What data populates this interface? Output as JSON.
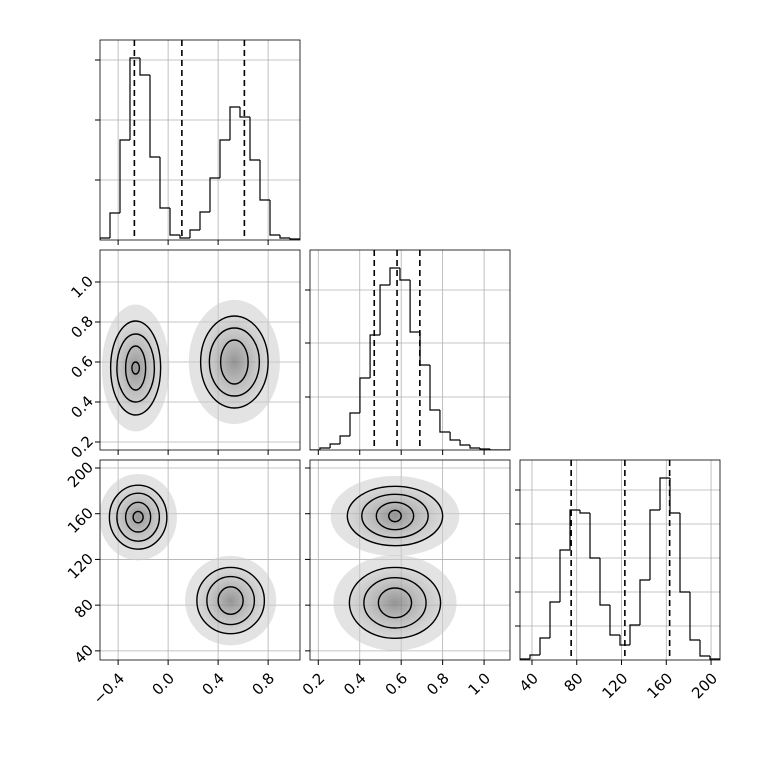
{
  "chart_data": [
    {
      "type": "histogram",
      "color": "#000000",
      "bins": [
        -0.545,
        -0.465,
        -0.385,
        -0.305,
        -0.225,
        -0.145,
        -0.065,
        0.015,
        0.095,
        0.175,
        0.255,
        0.335,
        0.415,
        0.495,
        0.575,
        0.655,
        0.735,
        0.815,
        0.895,
        0.975,
        1.055
      ],
      "counts": [
        2,
        27,
        100,
        182,
        165,
        83,
        32,
        5,
        2,
        10,
        28,
        62,
        100,
        133,
        123,
        80,
        40,
        5,
        2,
        1
      ],
      "quantiles": [
        -0.27,
        0.11,
        0.61
      ],
      "xlim": [
        -0.545,
        1.055
      ],
      "ylim": [
        0,
        200
      ],
      "xticks": [
        -0.4,
        0.0,
        0.4,
        0.8
      ],
      "yticks": [
        60,
        120,
        180
      ],
      "grid": true
    },
    {
      "type": "contour",
      "color": "#000000",
      "xlim": [
        -0.545,
        1.055
      ],
      "ylim": [
        0.16,
        1.16
      ],
      "xticks": [
        -0.4,
        0.0,
        0.4,
        0.8
      ],
      "yticks": [
        0.2,
        0.4,
        0.6,
        0.8,
        {
          "value": 1,
          "label": "1.0"
        }
      ],
      "contours": [
        {
          "cx": -0.26,
          "cy": 0.57,
          "rx": 0.2,
          "ry": 0.235
        },
        {
          "cx": -0.26,
          "cy": 0.57,
          "rx": 0.15,
          "ry": 0.17
        },
        {
          "cx": -0.26,
          "cy": 0.57,
          "rx": 0.08,
          "ry": 0.11
        },
        {
          "cx": -0.26,
          "cy": 0.57,
          "rx": 0.03,
          "ry": 0.03
        },
        {
          "cx": 0.53,
          "cy": 0.6,
          "rx": 0.27,
          "ry": 0.23
        },
        {
          "cx": 0.53,
          "cy": 0.6,
          "rx": 0.2,
          "ry": 0.17
        },
        {
          "cx": 0.53,
          "cy": 0.6,
          "rx": 0.11,
          "ry": 0.11
        }
      ],
      "grid": true
    },
    {
      "type": "histogram",
      "color": "#000000",
      "bins": [
        0.16,
        0.208,
        0.257,
        0.305,
        0.353,
        0.401,
        0.45,
        0.498,
        0.546,
        0.594,
        0.643,
        0.691,
        0.739,
        0.787,
        0.836,
        0.884,
        0.932,
        0.98,
        1.029,
        1.077,
        1.125
      ],
      "counts": [
        0,
        2,
        6,
        14,
        37,
        72,
        115,
        165,
        182,
        170,
        118,
        85,
        40,
        18,
        10,
        5,
        2,
        1,
        0,
        0
      ],
      "quantiles": [
        0.47,
        0.58,
        0.69
      ],
      "xlim": [
        0.16,
        1.125
      ],
      "ylim": [
        0,
        200
      ],
      "xticks": [
        0.2,
        0.4,
        0.6,
        0.8,
        1.0
      ],
      "yticks": [
        53,
        107,
        160
      ],
      "grid": true
    },
    {
      "type": "contour",
      "color": "#000000",
      "xlim": [
        -0.545,
        1.055
      ],
      "ylim": [
        32,
        207
      ],
      "xticks": [
        {
          "value": -0.4,
          "label": "−0.4"
        },
        {
          "value": 0,
          "label": "0.0"
        },
        0.4,
        0.8
      ],
      "yticks": [
        40,
        80,
        120,
        160,
        200
      ],
      "contours": [
        {
          "cx": -0.24,
          "cy": 157,
          "rx": 0.23,
          "ry": 28
        },
        {
          "cx": -0.24,
          "cy": 157,
          "rx": 0.17,
          "ry": 21
        },
        {
          "cx": -0.24,
          "cy": 157,
          "rx": 0.1,
          "ry": 13
        },
        {
          "cx": -0.24,
          "cy": 157,
          "rx": 0.04,
          "ry": 5
        },
        {
          "cx": 0.5,
          "cy": 84,
          "rx": 0.27,
          "ry": 29
        },
        {
          "cx": 0.5,
          "cy": 84,
          "rx": 0.19,
          "ry": 21
        },
        {
          "cx": 0.5,
          "cy": 84,
          "rx": 0.1,
          "ry": 12
        }
      ],
      "grid": true
    },
    {
      "type": "contour",
      "color": "#000000",
      "xlim": [
        0.16,
        1.125
      ],
      "ylim": [
        32,
        207
      ],
      "xticks": [
        0.2,
        0.4,
        0.6,
        0.8,
        {
          "value": 1,
          "label": "1.0"
        }
      ],
      "yticks": [
        40,
        80,
        120,
        160,
        200
      ],
      "contours": [
        {
          "cx": 0.57,
          "cy": 158,
          "rx": 0.23,
          "ry": 26
        },
        {
          "cx": 0.57,
          "cy": 158,
          "rx": 0.16,
          "ry": 19
        },
        {
          "cx": 0.57,
          "cy": 158,
          "rx": 0.09,
          "ry": 12
        },
        {
          "cx": 0.57,
          "cy": 158,
          "rx": 0.03,
          "ry": 5
        },
        {
          "cx": 0.57,
          "cy": 82,
          "rx": 0.22,
          "ry": 31
        },
        {
          "cx": 0.57,
          "cy": 82,
          "rx": 0.15,
          "ry": 22
        },
        {
          "cx": 0.57,
          "cy": 82,
          "rx": 0.08,
          "ry": 13
        }
      ],
      "grid": true
    },
    {
      "type": "histogram",
      "color": "#000000",
      "bins": [
        29.3,
        38.235,
        47.17,
        56.105,
        65.04,
        73.975,
        82.91,
        91.845,
        100.78,
        109.715,
        118.65,
        127.585,
        136.52,
        145.455,
        154.39,
        163.325,
        172.26,
        181.195,
        190.13,
        199.065,
        208
      ],
      "counts": [
        1,
        5,
        22,
        58,
        110,
        150,
        147,
        102,
        55,
        25,
        15,
        35,
        80,
        150,
        182,
        147,
        68,
        20,
        4,
        1
      ],
      "quantiles": [
        75,
        123,
        163
      ],
      "xlim": [
        29.3,
        208
      ],
      "ylim": [
        0,
        200
      ],
      "xticks": [
        40,
        80,
        120,
        160,
        200
      ],
      "yticks": [
        34,
        68,
        102,
        136,
        170
      ],
      "grid": true
    }
  ]
}
